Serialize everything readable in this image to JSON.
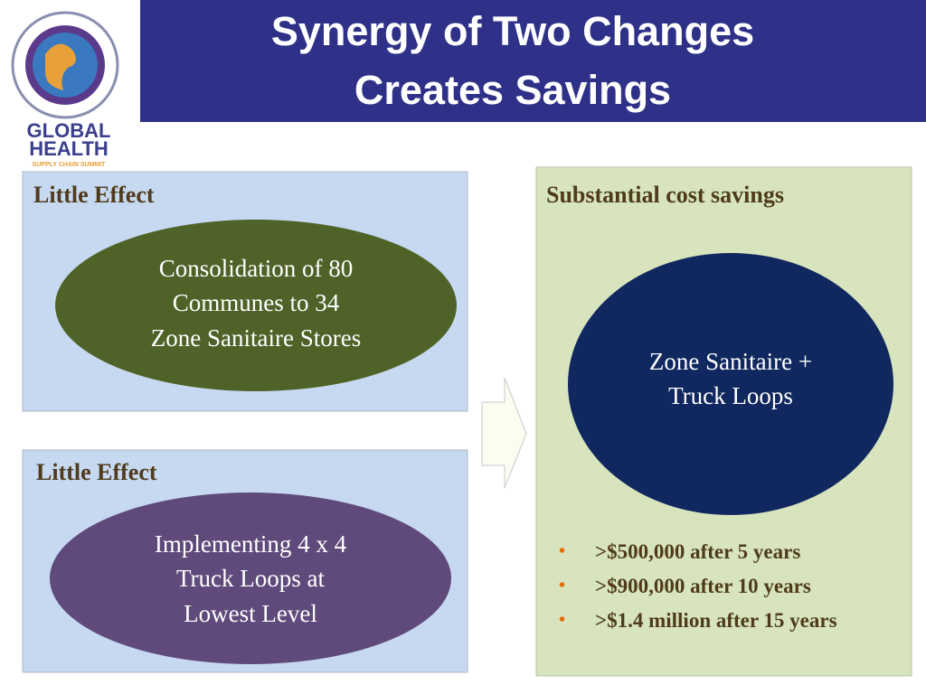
{
  "logo": {
    "line1": "GLOBAL",
    "line2": "HEALTH",
    "line3": "SUPPLY CHAIN SUMMIT"
  },
  "header": {
    "title_lines": [
      "Synergy of Two Changes",
      "Creates Savings"
    ]
  },
  "boxes": [
    {
      "heading": "Little Effect",
      "ellipse_lines": [
        "Consolidation of 80",
        "Communes to 34",
        "Zone Sanitaire Stores"
      ]
    },
    {
      "heading": "Little Effect",
      "ellipse_lines": [
        "Implementing 4 x 4",
        "Truck Loops at",
        "Lowest Level"
      ]
    },
    {
      "heading": "Substantial cost savings",
      "ellipse_lines": [
        "Zone Sanitaire +",
        "Truck Loops"
      ],
      "bullets": [
        ">$500,000 after 5 years",
        ">$900,000 after 10 years",
        ">$1.4 million after 15 years"
      ]
    }
  ]
}
